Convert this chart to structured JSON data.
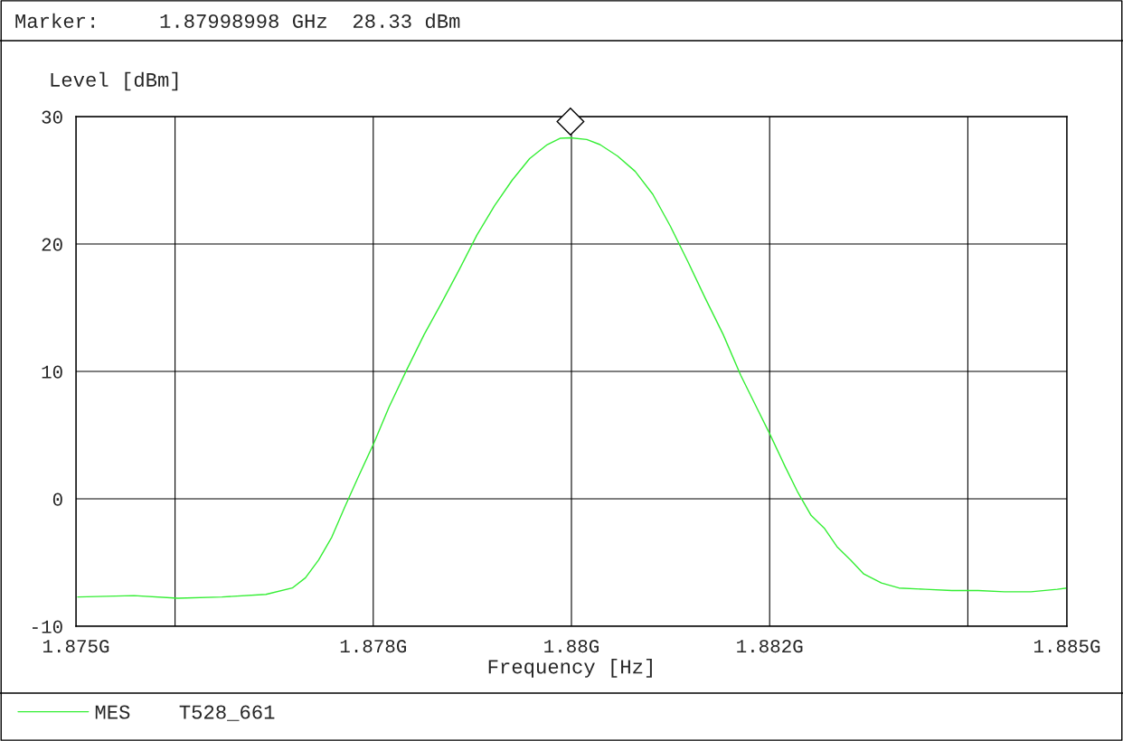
{
  "chart_data": {
    "type": "line",
    "ylabel": "Level [dBm]",
    "xlabel": "Frequency [Hz]",
    "annotations": [
      "Marker:     1.87998998 GHz  28.33 dBm"
    ],
    "x": [
      1.875018,
      1.875586,
      1.876029,
      1.876473,
      1.876917,
      1.877183,
      1.877316,
      1.877449,
      1.877582,
      1.877715,
      1.877848,
      1.878008,
      1.878159,
      1.878336,
      1.878514,
      1.878691,
      1.878869,
      1.879046,
      1.879224,
      1.879401,
      1.879578,
      1.879756,
      1.879889,
      1.87999,
      1.880155,
      1.880288,
      1.880466,
      1.880643,
      1.880821,
      1.880998,
      1.881176,
      1.881353,
      1.881531,
      1.881708,
      1.881886,
      1.882001,
      1.882152,
      1.882285,
      1.882418,
      1.882551,
      1.882684,
      1.882817,
      1.88295,
      1.883128,
      1.883305,
      1.883571,
      1.883838,
      1.884104,
      1.88437,
      1.884636,
      1.884902,
      1.885
    ],
    "series": [
      {
        "name": "MES    T528_661",
        "color": "#33ee33",
        "values": [
          -7.7,
          -7.6,
          -7.8,
          -7.7,
          -7.5,
          -7.0,
          -6.2,
          -4.8,
          -3.0,
          -0.6,
          1.7,
          4.4,
          7.2,
          10.1,
          12.9,
          15.4,
          18.0,
          20.7,
          23.0,
          25.0,
          26.7,
          27.8,
          28.3,
          28.33,
          28.2,
          27.8,
          26.9,
          25.7,
          23.9,
          21.4,
          18.6,
          15.7,
          12.9,
          9.7,
          6.9,
          5.1,
          2.6,
          0.5,
          -1.3,
          -2.3,
          -3.8,
          -4.8,
          -5.9,
          -6.6,
          -7.0,
          -7.1,
          -7.2,
          -7.2,
          -7.3,
          -7.3,
          -7.1,
          -7.0
        ]
      }
    ],
    "xlim": [
      1.875,
      1.885
    ],
    "xticks": [
      {
        "value": 1.875,
        "label": "1.875G"
      },
      {
        "value": 1.876,
        "label": null
      },
      {
        "value": 1.878,
        "label": "1.878G"
      },
      {
        "value": 1.88,
        "label": "1.88G"
      },
      {
        "value": 1.882,
        "label": "1.882G"
      },
      {
        "value": 1.884,
        "label": null
      },
      {
        "value": 1.885,
        "label": "1.885G"
      }
    ],
    "ylim": [
      -10,
      30
    ],
    "yticks": [
      -10,
      0,
      10,
      20,
      30
    ],
    "grid": true,
    "legend": "bottom",
    "marker": "none",
    "line_style": "solid"
  }
}
